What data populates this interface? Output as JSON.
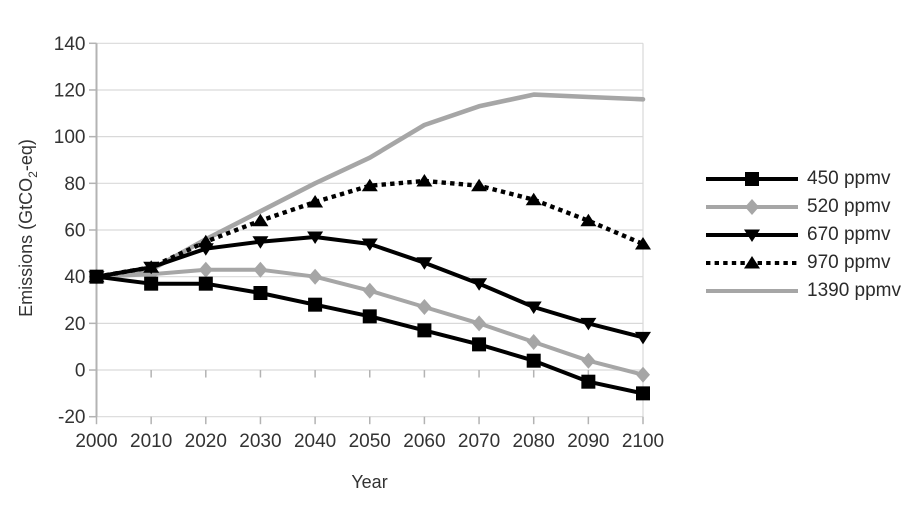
{
  "chart_data": {
    "type": "line",
    "title": "",
    "xlabel": "Year",
    "ylabel": "Emissions (GtCO₂-eq)",
    "ylabel_parts": {
      "pre": "Emissions (GtCO",
      "sub": "2",
      "post": "-eq)"
    },
    "x": [
      2000,
      2010,
      2020,
      2030,
      2040,
      2050,
      2060,
      2070,
      2080,
      2090,
      2100
    ],
    "yticks": [
      -20,
      0,
      20,
      40,
      60,
      80,
      100,
      120,
      140
    ],
    "ylim": [
      -20,
      140
    ],
    "grid": true,
    "legend_position": "right",
    "series": [
      {
        "name": "450 ppmv",
        "color": "#000000",
        "marker": "square",
        "line": "solid",
        "values": [
          40,
          37,
          37,
          33,
          28,
          23,
          17,
          11,
          4,
          -5,
          -10
        ]
      },
      {
        "name": "520 ppmv",
        "color": "#a6a6a6",
        "marker": "diamond",
        "line": "solid",
        "values": [
          40,
          41,
          43,
          43,
          40,
          34,
          27,
          20,
          12,
          4,
          -2
        ]
      },
      {
        "name": "670 ppmv",
        "color": "#000000",
        "marker": "triangle-down",
        "line": "solid",
        "values": [
          40,
          44,
          52,
          55,
          57,
          54,
          46,
          37,
          27,
          20,
          14
        ]
      },
      {
        "name": "970 ppmv",
        "color": "#000000",
        "marker": "triangle-up",
        "line": "dotted",
        "values": [
          40,
          44,
          55,
          64,
          72,
          79,
          81,
          79,
          73,
          64,
          54
        ]
      },
      {
        "name": "1390 ppmv",
        "color": "#a6a6a6",
        "marker": "none",
        "line": "solid",
        "values": [
          40,
          43,
          56,
          68,
          80,
          91,
          105,
          113,
          118,
          117,
          116
        ]
      }
    ]
  },
  "colors": {
    "background": "#ffffff",
    "grid": "#d9d9d9",
    "axis": "#b3b3b3",
    "text": "#333333"
  }
}
